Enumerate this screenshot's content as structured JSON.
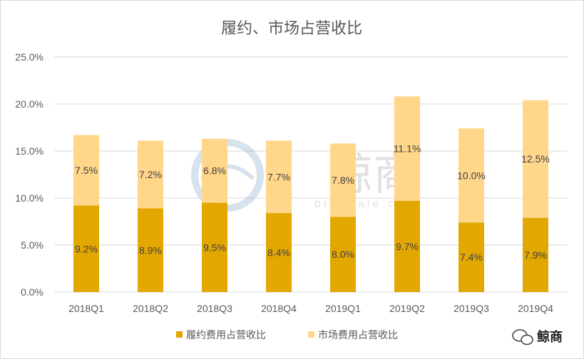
{
  "chart_data": {
    "type": "bar",
    "stacked": true,
    "title": "履约、市场占营收比",
    "categories": [
      "2018Q1",
      "2018Q2",
      "2018Q3",
      "2018Q4",
      "2019Q1",
      "2019Q2",
      "2019Q3",
      "2019Q4"
    ],
    "series": [
      {
        "name": "履约费用占营收比",
        "values": [
          9.2,
          8.9,
          9.5,
          8.4,
          8.0,
          9.7,
          7.4,
          7.9
        ],
        "labels": [
          "9.2%",
          "8.9%",
          "9.5%",
          "8.4%",
          "8.0%",
          "9.7%",
          "7.4%",
          "7.9%"
        ],
        "color": "#E2A700"
      },
      {
        "name": "市场费用占营收比",
        "values": [
          7.5,
          7.2,
          6.8,
          7.7,
          7.8,
          11.1,
          10.0,
          12.5
        ],
        "labels": [
          "7.5%",
          "7.2%",
          "6.8%",
          "7.7%",
          "7.8%",
          "11.1%",
          "10.0%",
          "12.5%"
        ],
        "color": "#FFD68A"
      }
    ],
    "ylim": [
      0,
      25
    ],
    "yticks": [
      "0.0%",
      "5.0%",
      "10.0%",
      "15.0%",
      "20.0%",
      "25.0%"
    ],
    "grid": true,
    "legend": "bottom"
  },
  "watermark": {
    "text": "鲸商",
    "subtext": "bizwhale.cn"
  },
  "brand": {
    "label": "鲸商",
    "icon": "wechat-icon"
  }
}
